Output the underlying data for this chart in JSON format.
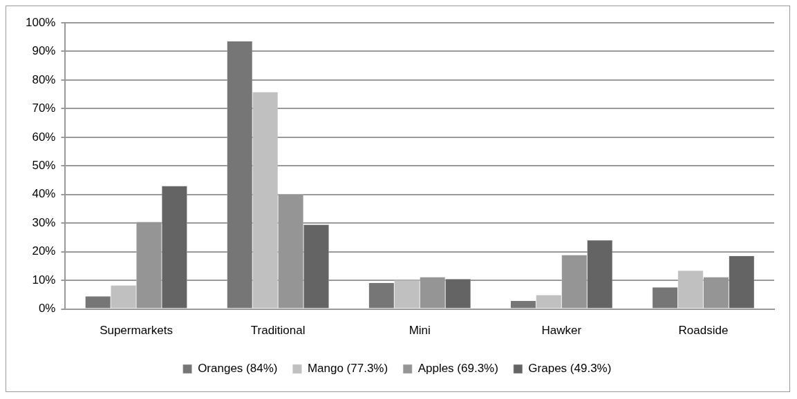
{
  "chart_data": {
    "type": "bar",
    "categories": [
      "Supermarkets",
      "Traditional",
      "Mini",
      "Hawker",
      "Roadside"
    ],
    "series": [
      {
        "name": "Oranges (84%)",
        "color": "#767676",
        "values": [
          4.5,
          93.6,
          9.2,
          2.9,
          7.6
        ]
      },
      {
        "name": "Mango (77.3%)",
        "color": "#c0c0c0",
        "values": [
          8.3,
          75.8,
          10.1,
          4.9,
          13.5
        ]
      },
      {
        "name": "Apples (69.3%)",
        "color": "#959595",
        "values": [
          30.5,
          40.1,
          11.2,
          18.9,
          11.2
        ]
      },
      {
        "name": "Grapes (49.3%)",
        "color": "#646464",
        "values": [
          43.0,
          29.5,
          10.5,
          24.1,
          18.6
        ]
      }
    ],
    "ylim": [
      0,
      100
    ],
    "yticks": [
      {
        "value": 0,
        "label": "0%"
      },
      {
        "value": 10,
        "label": "10%"
      },
      {
        "value": 20,
        "label": "20%"
      },
      {
        "value": 30,
        "label": "30%"
      },
      {
        "value": 40,
        "label": "40%"
      },
      {
        "value": 50,
        "label": "50%"
      },
      {
        "value": 60,
        "label": "60%"
      },
      {
        "value": 70,
        "label": "70%"
      },
      {
        "value": 80,
        "label": "80%"
      },
      {
        "value": 90,
        "label": "90%"
      },
      {
        "value": 100,
        "label": "100%"
      }
    ],
    "grid": "y",
    "legend": "bottom"
  }
}
